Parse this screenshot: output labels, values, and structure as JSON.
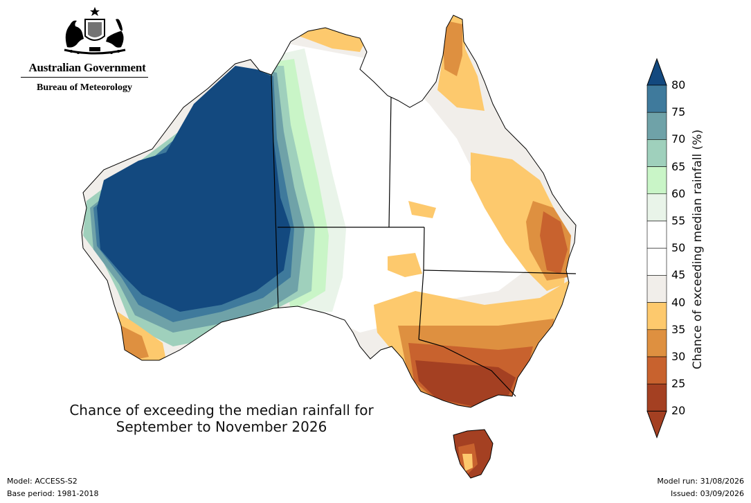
{
  "header": {
    "government": "Australian Government",
    "agency": "Bureau of Meteorology"
  },
  "map": {
    "title_line1": "Chance of exceeding the median rainfall for",
    "title_line2": "September to November 2026"
  },
  "legend": {
    "label": "Chance of exceeding median rainfall (%)",
    "ticks": [
      "80",
      "75",
      "70",
      "65",
      "60",
      "55",
      "50",
      "45",
      "40",
      "35",
      "30",
      "25",
      "20"
    ],
    "colors": [
      "#13497f",
      "#3f7a9c",
      "#6fa2a8",
      "#9fd0bc",
      "#c9f5c7",
      "#e9f4e9",
      "#ffffff",
      "#f1eeea",
      "#fdc96d",
      "#de9040",
      "#c8622e",
      "#a44022"
    ]
  },
  "footer": {
    "model": "Model: ACCESS-S2",
    "base_period": "Base period: 1981-2018",
    "model_run": "Model run: 31/08/2026",
    "issued": "Issued: 03/09/2026"
  }
}
